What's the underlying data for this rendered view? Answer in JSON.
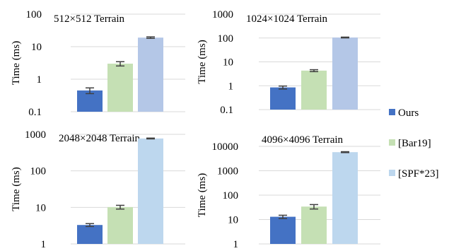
{
  "chart_data": [
    {
      "type": "bar",
      "title": "512×512 Terrain",
      "ylabel": "Time (ms)",
      "yscale": "log",
      "ylim": [
        0.1,
        100
      ],
      "yticks": [
        "0.1",
        "1",
        "10",
        "100"
      ],
      "categories": [
        "Ours",
        "[Bar19]",
        "[SPF*23]"
      ],
      "values": [
        0.45,
        3.0,
        19.0
      ],
      "errors": [
        0.09,
        0.45,
        1.0
      ],
      "colors": [
        "#4472C4",
        "#C5E0B4",
        "#B4C7E7"
      ]
    },
    {
      "type": "bar",
      "title": "1024×1024 Terrain",
      "ylabel": "Time (ms)",
      "yscale": "log",
      "ylim": [
        0.1,
        1000
      ],
      "yticks": [
        "0.1",
        "1",
        "10",
        "100",
        "1000"
      ],
      "categories": [
        "Ours",
        "[Bar19]",
        "[SPF*23]"
      ],
      "values": [
        0.85,
        4.3,
        105
      ],
      "errors": [
        0.12,
        0.4,
        4
      ],
      "colors": [
        "#4472C4",
        "#C5E0B4",
        "#B4C7E7"
      ]
    },
    {
      "type": "bar",
      "title": "2048×2048 Terrain",
      "ylabel": "Time (ms)",
      "yscale": "log",
      "ylim": [
        1,
        1000
      ],
      "yticks": [
        "1",
        "10",
        "100",
        "1000"
      ],
      "categories": [
        "Ours",
        "[Bar19]",
        "[SPF*23]"
      ],
      "values": [
        3.3,
        10.2,
        770
      ],
      "errors": [
        0.3,
        1.2,
        20
      ],
      "colors": [
        "#4472C4",
        "#C5E0B4",
        "#BDD7EE"
      ]
    },
    {
      "type": "bar",
      "title": "4096×4096 Terrain",
      "ylabel": "Time (ms)",
      "yscale": "log",
      "ylim": [
        1,
        10000
      ],
      "yticks": [
        "1",
        "10",
        "100",
        "1000",
        "10000"
      ],
      "categories": [
        "Ours",
        "[Bar19]",
        "[SPF*23]"
      ],
      "values": [
        13,
        34,
        5800
      ],
      "errors": [
        2,
        7,
        250
      ],
      "colors": [
        "#4472C4",
        "#C5E0B4",
        "#BDD7EE"
      ]
    }
  ],
  "legend": {
    "placement": "right",
    "items": [
      {
        "label": "Ours",
        "color": "#4472C4"
      },
      {
        "label": "[Bar19]",
        "color": "#C5E0B4"
      },
      {
        "label": "[SPF*23]",
        "color": "#BDD7EE"
      }
    ]
  },
  "colors": {
    "grid": "#D9D9D9",
    "error_bar": "#404040"
  }
}
